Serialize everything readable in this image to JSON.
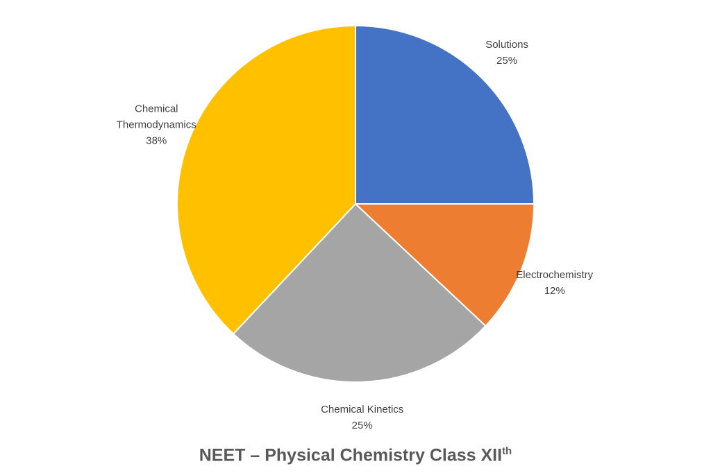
{
  "chart_data": {
    "type": "pie",
    "title": "NEET – Physical Chemistry Class XII",
    "title_sup": "th",
    "categories": [
      "Solutions",
      "Electrochemistry",
      "Chemical Kinetics",
      "Chemical Thermodynamics"
    ],
    "values": [
      25,
      12,
      25,
      38
    ],
    "value_labels": [
      "25%",
      "12%",
      "25%",
      "38%"
    ],
    "colors": [
      "#4472c4",
      "#ed7d31",
      "#a5a5a5",
      "#ffc000"
    ]
  }
}
